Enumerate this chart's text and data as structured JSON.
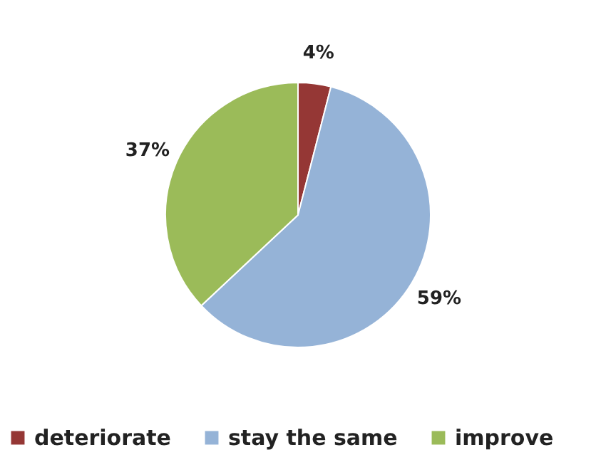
{
  "chart_data": {
    "type": "pie",
    "categories": [
      "deteriorate",
      "stay the same",
      "improve"
    ],
    "values": [
      4,
      59,
      37
    ],
    "colors": [
      "#953735",
      "#95b3d7",
      "#9bbb59"
    ],
    "value_labels": [
      "4%",
      "59%",
      "37%"
    ],
    "legend": "bottom"
  }
}
